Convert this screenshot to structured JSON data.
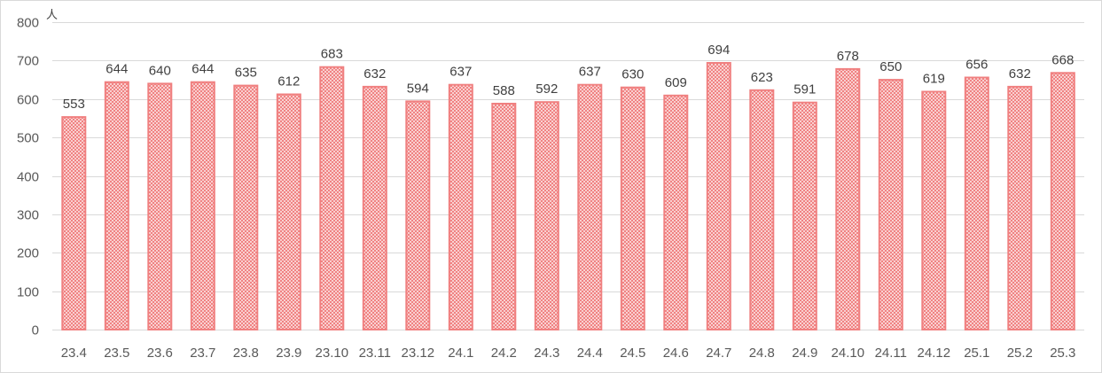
{
  "chart_data": {
    "type": "bar",
    "title": "",
    "xlabel": "",
    "ylabel": "",
    "unit": "人",
    "categories": [
      "23.4",
      "23.5",
      "23.6",
      "23.7",
      "23.8",
      "23.9",
      "23.10",
      "23.11",
      "23.12",
      "24.1",
      "24.2",
      "24.3",
      "24.4",
      "24.5",
      "24.6",
      "24.7",
      "24.8",
      "24.9",
      "24.10",
      "24.11",
      "24.12",
      "25.1",
      "25.2",
      "25.3"
    ],
    "values": [
      553,
      644,
      640,
      644,
      635,
      612,
      683,
      632,
      594,
      637,
      588,
      592,
      637,
      630,
      609,
      694,
      623,
      591,
      678,
      650,
      619,
      656,
      632,
      668
    ],
    "ylim": [
      0,
      800
    ],
    "yticks": [
      0,
      100,
      200,
      300,
      400,
      500,
      600,
      700,
      800
    ],
    "grid": true,
    "legend": "none",
    "data_labels": true,
    "colors": {
      "bar_fill": "#f08080",
      "bar_stroke": "#f08080",
      "pattern_bg": "#ffffff",
      "grid": "#d9d9d9"
    }
  }
}
